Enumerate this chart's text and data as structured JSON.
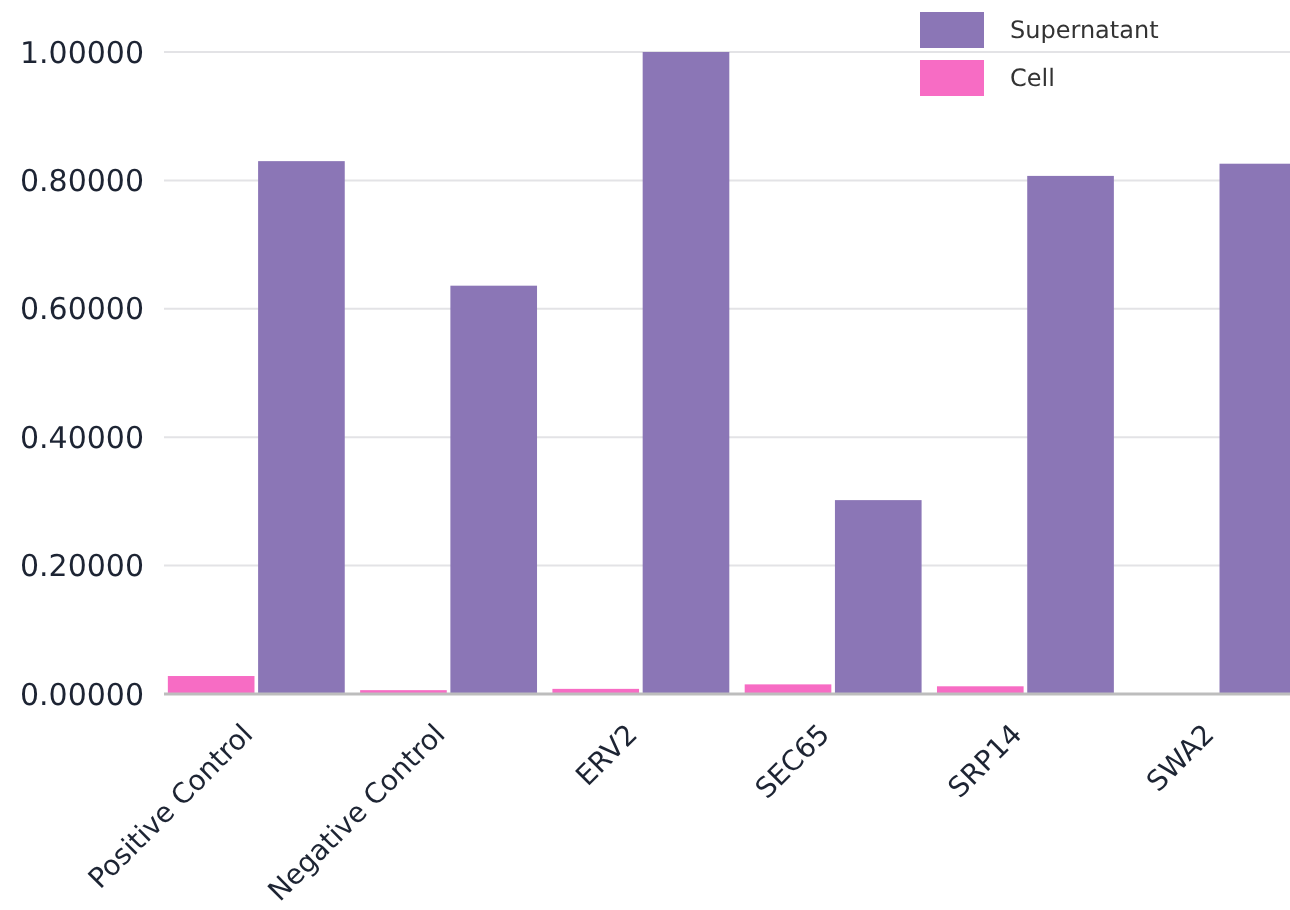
{
  "chart_data": {
    "type": "bar",
    "categories": [
      "Positive Control",
      "Negative Control",
      "ERV2",
      "SEC65",
      "SRP14",
      "SWA2"
    ],
    "series": [
      {
        "name": "Cell",
        "color": "#f76cc4",
        "values": [
          0.028,
          0.006,
          0.008,
          0.015,
          0.012,
          0
        ]
      },
      {
        "name": "Supernatant",
        "color": "#8b76b6",
        "values": [
          0.83,
          0.636,
          1.0,
          0.302,
          0.807,
          0.826
        ]
      }
    ],
    "ylim": [
      0,
      1
    ],
    "yticks": [
      {
        "value": 0,
        "label": "0.00000"
      },
      {
        "value": 0.2,
        "label": "0.20000"
      },
      {
        "value": 0.4,
        "label": "0.40000"
      },
      {
        "value": 0.6,
        "label": "0.60000"
      },
      {
        "value": 0.8,
        "label": "0.80000"
      },
      {
        "value": 1,
        "label": "1.00000"
      }
    ],
    "grid": "y",
    "legend": "top right"
  }
}
